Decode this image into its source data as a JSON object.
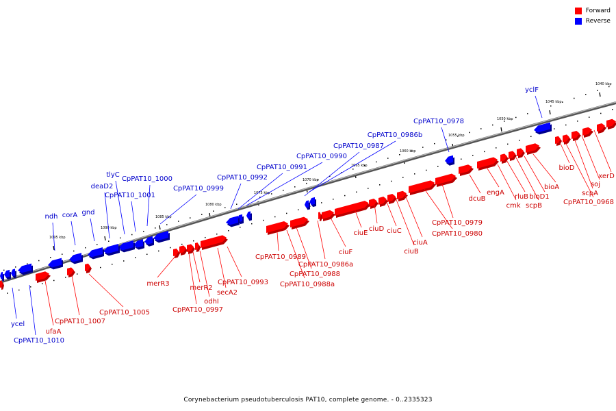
{
  "legend": [
    {
      "label": "Forward",
      "color": "#ff0000"
    },
    {
      "label": "Reverse",
      "color": "#0000ff"
    }
  ],
  "caption": "Corynebacterium pseudotuberculosis PAT10, complete genome. - 0..2335323",
  "colors": {
    "forward": "#ff0000",
    "forward_shadow": "#b80000",
    "reverse": "#0000ff",
    "reverse_shadow": "#00008c",
    "backbone": "#808080"
  },
  "scale_ticks": [
    "1040 kbp",
    "1045 kbp",
    "1050 kbp",
    "1055 kbp",
    "1060 kbp",
    "1065 kbp",
    "1070 kbp",
    "1075 kbp",
    "1080 kbp",
    "1085 kbp",
    "1090 kbp",
    "1095 kbp"
  ],
  "forward_labels": [
    "xerD",
    "soj",
    "scpA",
    "CpPAT10_0968",
    "bioD",
    "bioA",
    "bioD1",
    "scpB",
    "rluB",
    "cmk",
    "engA",
    "dcuB",
    "CpPAT10_0979",
    "CpPAT10_0980",
    "ciuA",
    "ciuB",
    "ciuC",
    "ciuD",
    "ciuE",
    "ciuF",
    "CpPAT10_0986a",
    "CpPAT10_0988",
    "CpPAT10_0988a",
    "CpPAT10_0989",
    "CpPAT10_0993",
    "secA2",
    "odhI",
    "merR2",
    "CpPAT10_0997",
    "merR3",
    "CpPAT10_1005",
    "CpPAT10_1007",
    "ufaA"
  ],
  "reverse_labels": [
    "yclF",
    "CpPAT10_0978",
    "CpPAT10_0986b",
    "CpPAT10_0987",
    "CpPAT10_0990",
    "CpPAT10_0991",
    "CpPAT10_0992",
    "CpPAT10_0999",
    "CpPAT10_1000",
    "tlyC",
    "CpPAT10_1001",
    "deaD2",
    "gnd",
    "corA",
    "ndh",
    "ycel",
    "CpPAT10_1010"
  ]
}
